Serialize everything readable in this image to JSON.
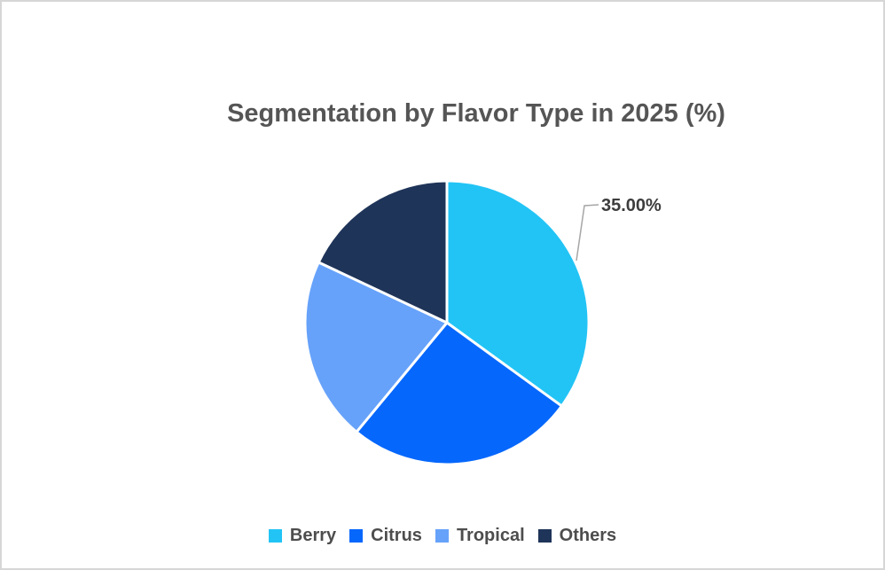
{
  "chart_data": {
    "type": "pie",
    "title": "Segmentation by Flavor Type in 2025 (%)",
    "start_angle": "12 o'clock, clockwise",
    "legend_position": "bottom",
    "series": [
      {
        "name": "Berry",
        "value": 35,
        "color": "#22C4F5",
        "data_label": "35.00%"
      },
      {
        "name": "Citrus",
        "value": 26,
        "color": "#0667FC",
        "data_label": null
      },
      {
        "name": "Tropical",
        "value": 21,
        "color": "#66A2FA",
        "data_label": null
      },
      {
        "name": "Others",
        "value": 18,
        "color": "#1F3459",
        "data_label": null
      }
    ]
  },
  "styles": {
    "background": "#FFFFFF",
    "border_color": "#D6D6D6",
    "title_color": "#555555",
    "label_color": "#3D3D3D",
    "legend_text_color": "#4D4D4D",
    "leader_line_color": "#A6A6A6",
    "slice_separator_color": "#FFFFFF"
  }
}
